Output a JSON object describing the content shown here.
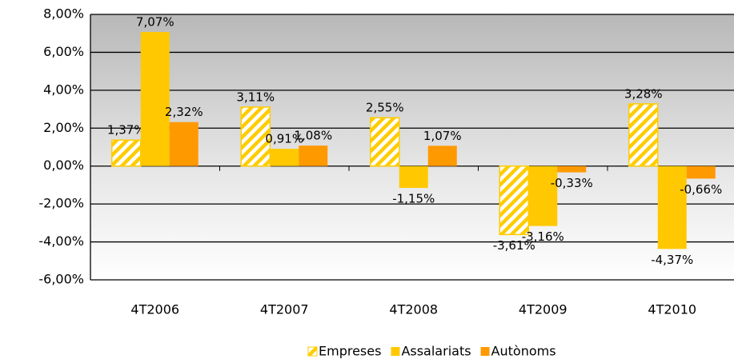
{
  "chart_data": {
    "type": "bar",
    "categories": [
      "4T2006",
      "4T2007",
      "4T2008",
      "4T2009",
      "4T2010"
    ],
    "series": [
      {
        "name": "Empreses",
        "color": "#FFCC00",
        "hatch": true,
        "values": [
          1.37,
          3.11,
          2.55,
          -3.61,
          3.28
        ],
        "value_labels": [
          "1,37%",
          "3,11%",
          "2,55%",
          "-3,61%",
          "3,28%"
        ]
      },
      {
        "name": "Assalariats",
        "color": "#FFC800",
        "values": [
          7.07,
          0.91,
          -1.15,
          -3.16,
          -4.37
        ],
        "value_labels": [
          "7,07%",
          "0,91%",
          "-1,15%",
          "-3,16%",
          "-4,37%"
        ]
      },
      {
        "name": "Autònoms",
        "color": "#FF9900",
        "values": [
          2.32,
          1.08,
          1.07,
          -0.33,
          -0.66
        ],
        "value_labels": [
          "2,32%",
          "1,08%",
          "1,07%",
          "-0,33%",
          "-0,66%"
        ]
      }
    ],
    "ylim": [
      -6,
      8
    ],
    "yticks": [
      {
        "value": -6,
        "label": "-6,00%"
      },
      {
        "value": -4,
        "label": "-4,00%"
      },
      {
        "value": -2,
        "label": "-2,00%"
      },
      {
        "value": 0,
        "label": "0,00%"
      },
      {
        "value": 2,
        "label": "2,00%"
      },
      {
        "value": 4,
        "label": "4,00%"
      },
      {
        "value": 6,
        "label": "6,00%"
      },
      {
        "value": 8,
        "label": "8,00%"
      }
    ],
    "grid": true,
    "legend": "bottom"
  }
}
